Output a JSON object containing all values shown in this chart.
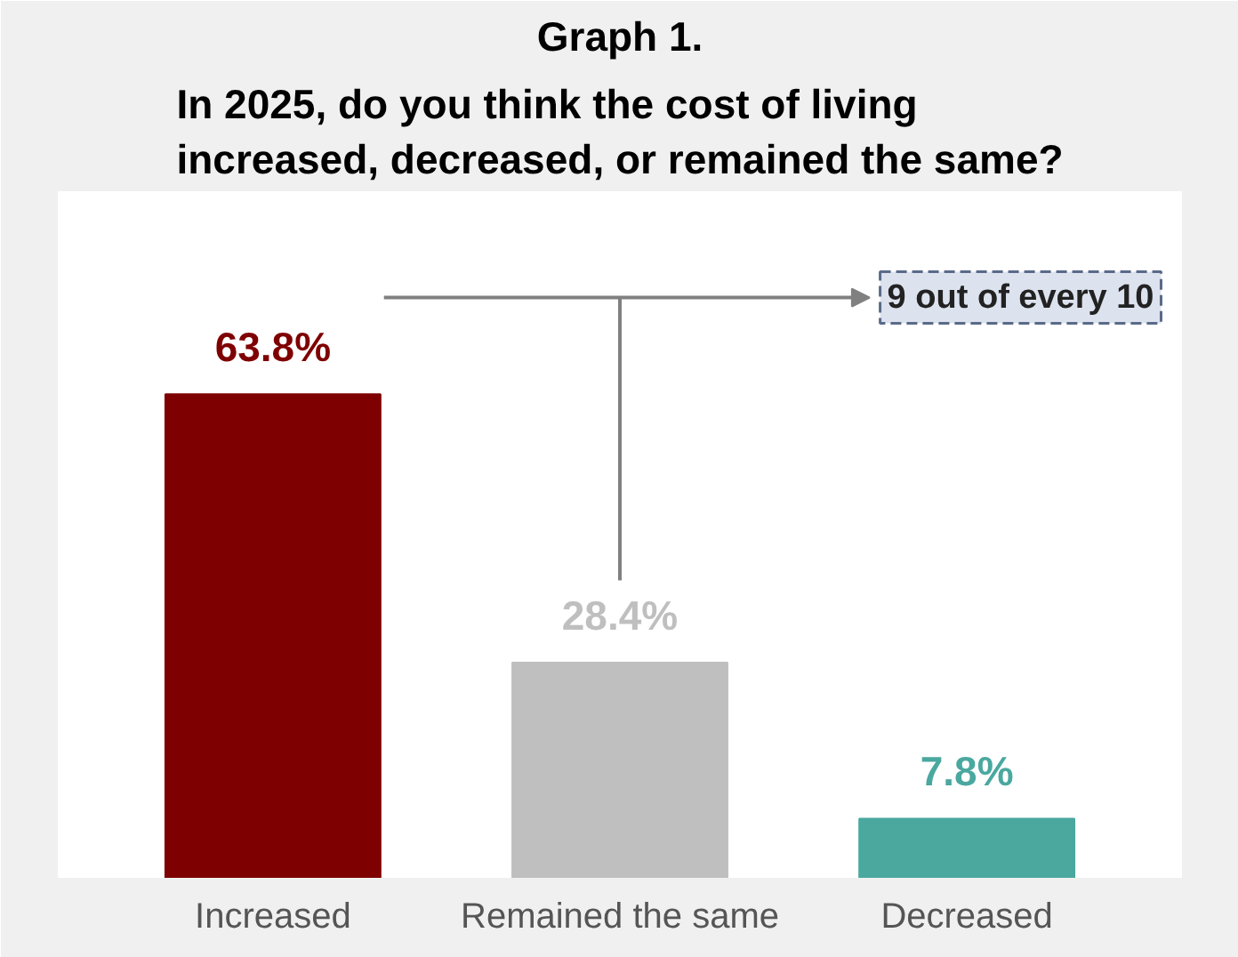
{
  "chart_data": {
    "type": "bar",
    "title": "Graph 1.",
    "subtitle": "In 2025, do you think the cost of living increased, decreased, or remained the same?",
    "categories": [
      "Increased",
      "Remained the same",
      "Decreased"
    ],
    "values": [
      63.8,
      28.4,
      7.8
    ],
    "colors": [
      "#7f0000",
      "#bfbfbf",
      "#4aa89f"
    ],
    "value_labels": [
      "63.8%",
      "28.4%",
      "7.8%"
    ],
    "annotations": [
      "9 out of every 10"
    ],
    "tick_labels": "x",
    "grid": false
  }
}
